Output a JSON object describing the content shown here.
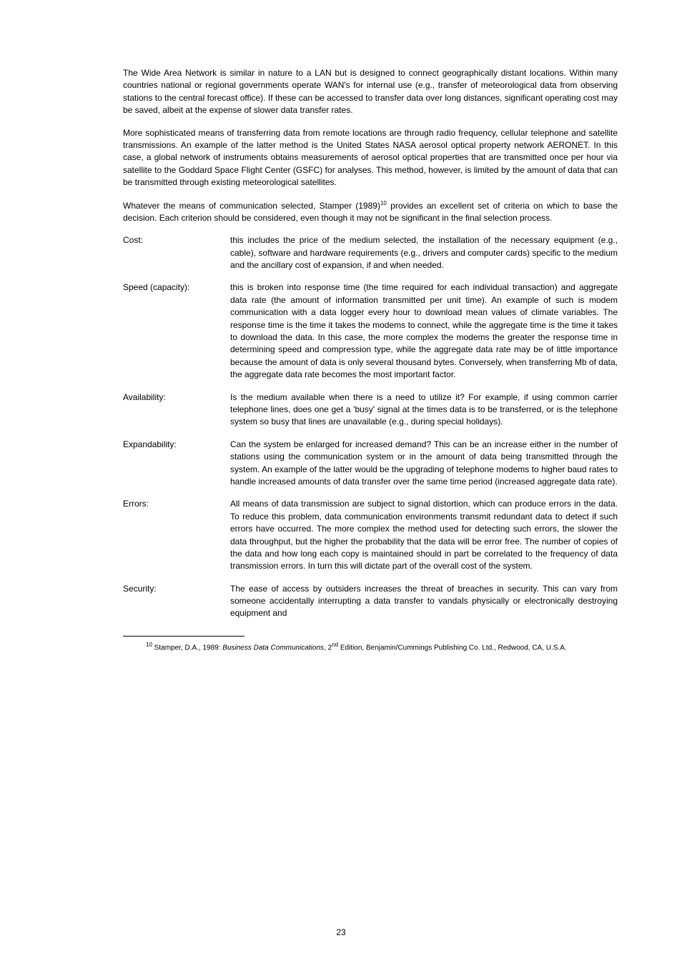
{
  "paragraphs": {
    "p1": "The Wide Area Network is similar in nature to a LAN but is designed to connect geographically distant locations. Within many countries national or regional governments operate WAN's for internal use (e.g., transfer of meteorological data from observing stations to the central forecast office). If these can be accessed to transfer data over long distances, significant operating cost may be saved, albeit at the expense of slower data transfer rates.",
    "p2": "More sophisticated means of transferring data from remote locations are through radio frequency, cellular telephone and satellite transmissions. An example of the latter method is the United States NASA aerosol optical property network AERONET. In this case, a global network of instruments obtains measurements of aerosol optical properties that are transmitted once per hour via satellite to the Goddard Space Flight Center (GSFC) for analyses. This method, however, is limited by the amount of data that can be transmitted through existing meteorological satellites.",
    "p3_pre": "Whatever the means of communication selected, Stamper (1989)",
    "p3_sup": "10",
    "p3_post": " provides an excellent set of criteria on which to base the decision. Each criterion should be considered, even though it may not be significant in the final selection process."
  },
  "criteria": [
    {
      "label": "Cost:",
      "text": "this includes the price of the medium selected, the installation of the necessary equipment (e.g., cable), software and hardware requirements (e.g., drivers and computer cards) specific to the medium and the ancillary cost of expansion, if and when needed."
    },
    {
      "label": "Speed (capacity):",
      "text": "this is broken into response time (the time required for each individual transaction) and aggregate data rate (the amount of information transmitted per unit time). An example of such is modem communication with a data logger every hour to download mean values of climate variables. The response time is the time it takes the modems to connect, while the aggregate time is the time it takes to download the data. In this case, the more complex the modems the greater the response time in determining speed and compression type, while the aggregate data rate may be of little importance because the amount of data is only several thousand bytes. Conversely, when transferring Mb of data, the aggregate data rate becomes the most important factor."
    },
    {
      "label": "Availability:",
      "text": "Is the medium available when there is a need to utilize it?  For example, if using common carrier telephone lines, does one get a 'busy' signal at the times data is to be transferred, or is the telephone system so busy that lines are unavailable (e.g., during special holidays)."
    },
    {
      "label": "Expandability:",
      "text": "Can the system be enlarged for increased demand?  This can be an increase either in the number of stations using the communication system or in the amount of data being transmitted through the system. An example of the latter would be the upgrading of telephone modems to higher baud rates to handle increased amounts of data transfer over the same time period (increased aggregate data rate)."
    },
    {
      "label": "Errors:",
      "text": "All means of data transmission are subject to signal distortion, which can produce errors in the data. To reduce this problem, data communication environments transmit redundant data to detect if such errors have occurred. The more complex the method used for detecting such errors, the slower the data throughput, but the higher the probability that the data will be error free. The number of copies of the data and how long each copy is maintained should in part be correlated to the frequency of data transmission errors. In turn this will dictate part of the overall cost of the system."
    },
    {
      "label": "Security:",
      "text": "The ease of access by outsiders increases the threat of breaches in security. This can vary from someone accidentally interrupting a data transfer to vandals physically or electronically destroying equipment and"
    }
  ],
  "footnote": {
    "marker": "10",
    "pre": " Stamper, D.A., 1989: ",
    "title": "Business Data Communications",
    "post_pre": ", 2",
    "ed_sup": "nd",
    "post": " Edition, Benjamin/Cummings Publishing Co. Ltd., Redwood, CA, U.S.A."
  },
  "page_number": "23"
}
